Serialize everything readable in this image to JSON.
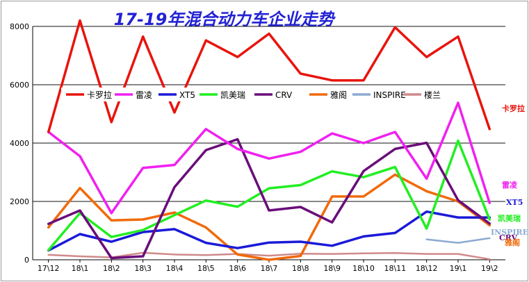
{
  "chart_data": {
    "type": "line",
    "title": "17-19年混合动力车企业走势",
    "categories": [
      "17\\12",
      "18\\1",
      "18\\2",
      "18\\3",
      "18\\4",
      "18\\5",
      "18\\6",
      "18\\7",
      "18\\8",
      "18\\9",
      "18\\10",
      "18\\11",
      "18\\12",
      "19\\1",
      "19\\2"
    ],
    "y_ticks": [
      "0",
      "2000",
      "4000",
      "6000",
      "8000"
    ],
    "ylim": [
      0,
      8000
    ],
    "grid": true,
    "legend_position": "top-left inside plot",
    "series": [
      {
        "name": "卡罗拉",
        "color": "#e8140c",
        "values": [
          4380,
          8200,
          4720,
          7650,
          5050,
          7520,
          6950,
          7750,
          6380,
          6150,
          6150,
          7970,
          6950,
          7650,
          4480
        ]
      },
      {
        "name": "雷凌",
        "color": "#f020f0",
        "values": [
          4380,
          3550,
          1600,
          3150,
          3250,
          4480,
          3800,
          3470,
          3700,
          4330,
          4000,
          4380,
          2780,
          5380,
          1950
        ]
      },
      {
        "name": "XT5",
        "color": "#1a1ad8",
        "values": [
          320,
          880,
          620,
          950,
          1050,
          580,
          400,
          590,
          620,
          480,
          800,
          920,
          1650,
          1450,
          1450
        ]
      },
      {
        "name": "凯美瑞",
        "color": "#22ee22",
        "values": [
          330,
          1600,
          780,
          1020,
          1530,
          2030,
          1820,
          2450,
          2560,
          3030,
          2830,
          3180,
          1070,
          4080,
          1380
        ]
      },
      {
        "name": "CRV",
        "color": "#6a0d7a",
        "values": [
          1230,
          1690,
          60,
          120,
          2490,
          3760,
          4130,
          1690,
          1810,
          1280,
          3040,
          3800,
          4010,
          2040,
          1240
        ]
      },
      {
        "name": "雅阁",
        "color": "#f06a0a",
        "values": [
          1110,
          2460,
          1350,
          1380,
          1620,
          1110,
          180,
          0,
          130,
          2170,
          2170,
          2920,
          2350,
          2000,
          1180
        ]
      },
      {
        "name": "INSPIRE",
        "color": "#8caad2",
        "values": [
          null,
          null,
          null,
          null,
          null,
          null,
          null,
          null,
          null,
          null,
          null,
          null,
          700,
          580,
          740
        ]
      },
      {
        "name": "楼兰",
        "color": "#d08a8a",
        "values": [
          170,
          120,
          80,
          240,
          180,
          160,
          200,
          140,
          210,
          200,
          220,
          230,
          200,
          200,
          20
        ]
      }
    ],
    "end_labels": [
      {
        "text": "卡罗拉",
        "series": "卡罗拉"
      },
      {
        "text": "雷凌",
        "series": "雷凌"
      },
      {
        "text": "XT5",
        "series": "XT5"
      },
      {
        "text": "凯美瑞",
        "series": "凯美瑞"
      },
      {
        "text": "INSPIRE",
        "series": "INSPIRE"
      },
      {
        "text": "CRV",
        "series": "CRV"
      },
      {
        "text": "雅阁",
        "series": "雅阁"
      }
    ]
  }
}
